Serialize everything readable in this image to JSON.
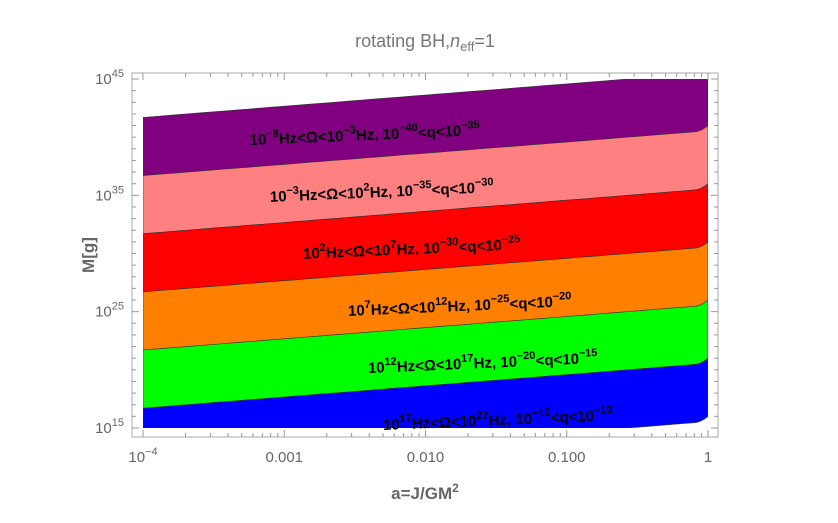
{
  "chart_data": {
    "type": "area",
    "title": {
      "main": "rotating BH,",
      "var": "n",
      "sub": "eff",
      "rest": "=1"
    },
    "xlabel": {
      "base": "a=J/GM",
      "sup": "2"
    },
    "ylabel": "M[g]",
    "xscale": "log",
    "yscale": "log",
    "xlim": [
      0.0001,
      1
    ],
    "ylim": [
      1000000000000000.0,
      1e+45
    ],
    "grid": false,
    "x_ticks": [
      {
        "base": "10",
        "sup": "−4",
        "value": 0.0001
      },
      {
        "base": "0.001",
        "sup": "",
        "value": 0.001
      },
      {
        "base": "0.010",
        "sup": "",
        "value": 0.01
      },
      {
        "base": "0.100",
        "sup": "",
        "value": 0.1
      },
      {
        "base": "1",
        "sup": "",
        "value": 1
      }
    ],
    "y_ticks": [
      {
        "base": "10",
        "sup": "45",
        "value": 1e+45
      },
      {
        "base": "10",
        "sup": "35",
        "value": 1e+35
      },
      {
        "base": "10",
        "sup": "25",
        "value": 1e+25
      },
      {
        "base": "10",
        "sup": "15",
        "value": 1000000000000000.0
      }
    ],
    "boundary_a": [
      0.0001,
      0.001,
      0.01,
      0.1,
      0.78,
      1
    ],
    "boundaries_M": [
      [
        5e+41,
        4.6e+42,
        4.2e+43,
        3.8e+44,
        2.8e+45,
        1e+46
      ],
      [
        5e+36,
        4.6e+37,
        4.2e+38,
        3.8e+39,
        2.8e+40,
        1e+41
      ],
      [
        5e+31,
        4.6e+32,
        4.2e+33,
        3.8e+34,
        2.8e+35,
        1e+36
      ],
      [
        5e+26,
        4.6e+27,
        4.2e+28,
        3.8e+29,
        2.8e+30,
        1e+31
      ],
      [
        5e+21,
        4.6e+22,
        4.2e+23,
        3.8e+24,
        2.8e+25,
        1e+26
      ],
      [
        5e+16,
        4.6e+17,
        4.2e+18,
        3.8e+19,
        2.8e+20,
        1e+21
      ],
      [
        500000000000.0,
        4600000000000.0,
        42000000000000.0,
        380000000000000.0,
        2800000000000000.0,
        1e+16
      ]
    ],
    "bands": [
      {
        "color": "#800080",
        "omega": [
          "−8",
          "−3"
        ],
        "q": [
          "−40",
          "−35"
        ]
      },
      {
        "color": "#FF8080",
        "omega": [
          "−3",
          "2"
        ],
        "q": [
          "−35",
          "−30"
        ]
      },
      {
        "color": "#FF0000",
        "omega": [
          "2",
          "7"
        ],
        "q": [
          "−30",
          "−25"
        ]
      },
      {
        "color": "#FF8000",
        "omega": [
          "7",
          "12"
        ],
        "q": [
          "−25",
          "−20"
        ]
      },
      {
        "color": "#00FF00",
        "omega": [
          "12",
          "17"
        ],
        "q": [
          "−20",
          "−15"
        ]
      },
      {
        "color": "#0000FF",
        "omega": [
          "17",
          "22"
        ],
        "q": [
          "−15",
          "−10"
        ]
      }
    ],
    "label_parts": {
      "ten": "10",
      "hz_lt_omega_lt": "Hz<Ω<10",
      "hz_comma": "Hz, 10",
      "lt_q_lt": "<q<10"
    }
  }
}
